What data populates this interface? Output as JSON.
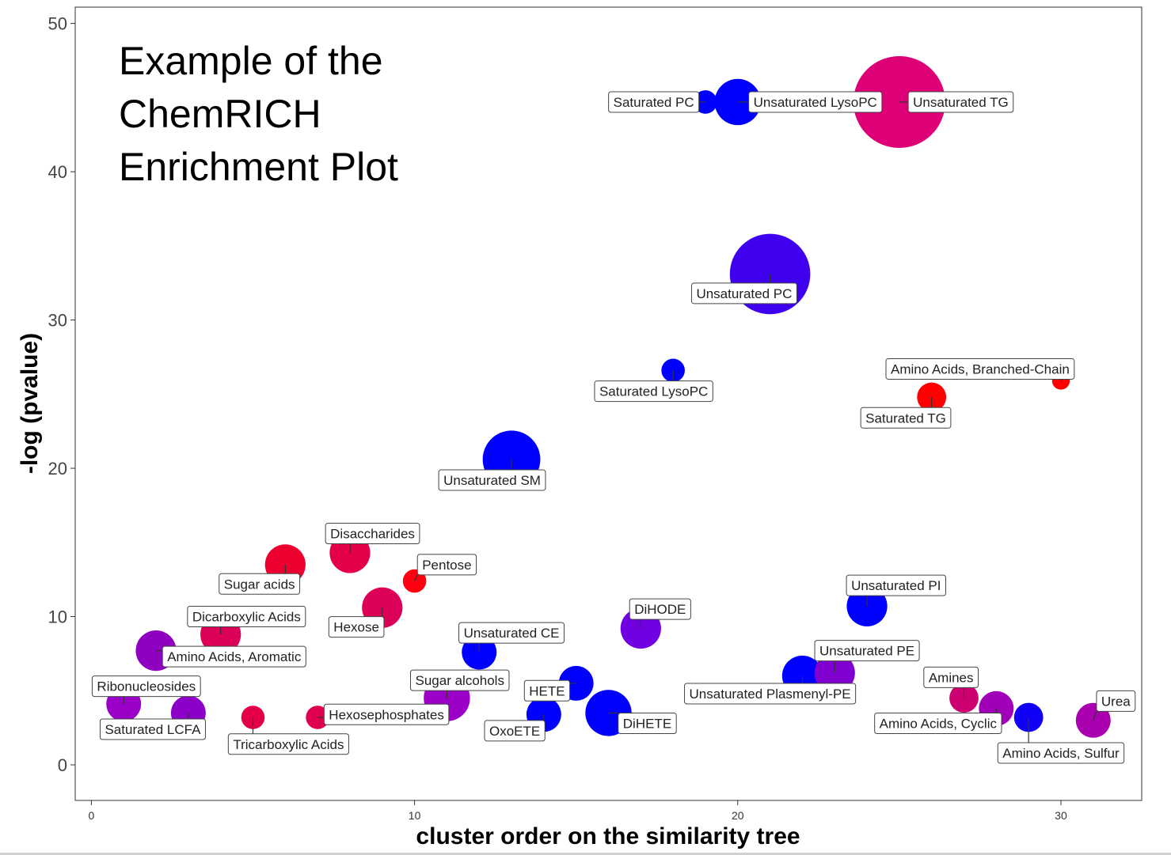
{
  "chart_data": {
    "type": "scatter",
    "title_lines": [
      "Example of the",
      "ChemRICH",
      "Enrichment Plot"
    ],
    "xlabel": "cluster order on the similarity tree",
    "ylabel": "-log (pvalue)",
    "xlim": [
      -0.5,
      32.5
    ],
    "ylim": [
      -2.4,
      51.1
    ],
    "x_ticks": [
      0,
      10,
      20,
      30
    ],
    "y_ticks": [
      0,
      10,
      20,
      30,
      40,
      50
    ],
    "grid": false,
    "color_scale": {
      "red": "#ff0000",
      "magenta": "#dd0077",
      "purple": "#9900cc",
      "blue": "#0000ff"
    },
    "points": [
      {
        "label": "Ribonucleosides",
        "x": 1,
        "y": 4.1,
        "size": 5,
        "color": "#9a00c8",
        "lx": 1.7,
        "ly": 5.3,
        "side": "center"
      },
      {
        "label": "Amino Acids, Aromatic",
        "x": 2,
        "y": 7.7,
        "size": 6,
        "color": "#9000c0",
        "lx": 2.2,
        "ly": 7.3,
        "side": "left"
      },
      {
        "label": "Saturated LCFA",
        "x": 3,
        "y": 3.5,
        "size": 5,
        "color": "#8c00c8",
        "lx": 1.9,
        "ly": 2.4,
        "side": "center"
      },
      {
        "label": "Dicarboxylic Acids",
        "x": 4,
        "y": 8.8,
        "size": 6,
        "color": "#dc0058",
        "lx": 4.8,
        "ly": 10.0,
        "side": "center"
      },
      {
        "label": "Tricarboxylic Acids",
        "x": 5,
        "y": 3.2,
        "size": 3,
        "color": "#e40048",
        "lx": 6.1,
        "ly": 1.4,
        "side": "center"
      },
      {
        "label": "Sugar acids",
        "x": 6,
        "y": 13.5,
        "size": 6,
        "color": "#ec0030",
        "lx": 5.2,
        "ly": 12.2,
        "side": "center"
      },
      {
        "label": "Hexosephosphates",
        "x": 7,
        "y": 3.2,
        "size": 3,
        "color": "#e00050",
        "lx": 7.2,
        "ly": 3.4,
        "side": "left"
      },
      {
        "label": "Disaccharides",
        "x": 8,
        "y": 14.3,
        "size": 6,
        "color": "#e40048",
        "lx": 8.7,
        "ly": 15.6,
        "side": "center"
      },
      {
        "label": "Hexose",
        "x": 9,
        "y": 10.6,
        "size": 6,
        "color": "#dc0058",
        "lx": 8.2,
        "ly": 9.3,
        "side": "center"
      },
      {
        "label": "Pentose",
        "x": 10,
        "y": 12.4,
        "size": 3,
        "color": "#ff0010",
        "lx": 11.0,
        "ly": 13.5,
        "side": "center"
      },
      {
        "label": "Sugar alcohols",
        "x": 11,
        "y": 4.5,
        "size": 7,
        "color": "#9c00c8",
        "lx": 11.4,
        "ly": 5.7,
        "side": "center"
      },
      {
        "label": "Unsaturated CE",
        "x": 12,
        "y": 7.6,
        "size": 5,
        "color": "#0000ff",
        "lx": 13.0,
        "ly": 8.9,
        "side": "center"
      },
      {
        "label": "Unsaturated SM",
        "x": 13,
        "y": 20.6,
        "size": 9,
        "color": "#0000ff",
        "lx": 12.4,
        "ly": 19.2,
        "side": "center"
      },
      {
        "label": "HETE",
        "x": 15,
        "y": 5.5,
        "size": 5,
        "color": "#0000ff",
        "lx": 14.1,
        "ly": 5.0,
        "side": "center"
      },
      {
        "label": "OxoETE",
        "x": 14,
        "y": 3.4,
        "size": 5,
        "color": "#0000ff",
        "lx": 13.1,
        "ly": 2.3,
        "side": "center"
      },
      {
        "label": "DiHETE",
        "x": 16,
        "y": 3.5,
        "size": 7,
        "color": "#0000ff",
        "lx": 17.2,
        "ly": 2.8,
        "side": "center"
      },
      {
        "label": "DiHODE",
        "x": 17,
        "y": 9.2,
        "size": 6,
        "color": "#7000e0",
        "lx": 17.6,
        "ly": 10.5,
        "side": "center"
      },
      {
        "label": "Saturated LysoPC",
        "x": 18,
        "y": 26.6,
        "size": 3,
        "color": "#0000ff",
        "lx": 17.4,
        "ly": 25.2,
        "side": "center"
      },
      {
        "label": "Saturated PC",
        "x": 19,
        "y": 44.7,
        "size": 3,
        "color": "#0000ff",
        "lx": 17.4,
        "ly": 44.7,
        "side": "center"
      },
      {
        "label": "Unsaturated LysoPC",
        "x": 20,
        "y": 44.7,
        "size": 7,
        "color": "#0000ff",
        "lx": 22.4,
        "ly": 44.7,
        "side": "center"
      },
      {
        "label": "Unsaturated PC",
        "x": 21,
        "y": 33.1,
        "size": 13,
        "color": "#4000f0",
        "lx": 20.2,
        "ly": 31.8,
        "side": "center"
      },
      {
        "label": "Unsaturated Plasmenyl-PE",
        "x": 22,
        "y": 6.0,
        "size": 6,
        "color": "#0000ff",
        "lx": 21.0,
        "ly": 4.8,
        "side": "center"
      },
      {
        "label": "Unsaturated PE",
        "x": 23,
        "y": 6.2,
        "size": 6,
        "color": "#8000d0",
        "lx": 24.0,
        "ly": 7.7,
        "side": "center"
      },
      {
        "label": "Unsaturated PI",
        "x": 24,
        "y": 10.7,
        "size": 6,
        "color": "#0000ff",
        "lx": 24.9,
        "ly": 12.1,
        "side": "center"
      },
      {
        "label": "Unsaturated TG",
        "x": 25,
        "y": 44.7,
        "size": 15,
        "color": "#dd0077",
        "lx": 26.9,
        "ly": 44.7,
        "side": "center"
      },
      {
        "label": "Saturated TG",
        "x": 26,
        "y": 24.8,
        "size": 4,
        "color": "#ff0000",
        "lx": 25.2,
        "ly": 23.4,
        "side": "center"
      },
      {
        "label": "Amino Acids, Branched-Chain",
        "x": 30,
        "y": 25.9,
        "size": 2,
        "color": "#ff0000",
        "lx": 27.5,
        "ly": 26.7,
        "side": "center"
      },
      {
        "label": "Amines",
        "x": 27,
        "y": 4.5,
        "size": 4,
        "color": "#cc0070",
        "lx": 26.6,
        "ly": 5.9,
        "side": "center"
      },
      {
        "label": "Amino Acids, Cyclic",
        "x": 28,
        "y": 3.8,
        "size": 5,
        "color": "#a000b8",
        "lx": 26.2,
        "ly": 2.8,
        "side": "center"
      },
      {
        "label": "Amino Acids, Sulfur",
        "x": 29,
        "y": 3.2,
        "size": 4,
        "color": "#1000f8",
        "lx": 30.0,
        "ly": 0.8,
        "side": "center"
      },
      {
        "label": "Urea",
        "x": 31,
        "y": 3.0,
        "size": 5,
        "color": "#aa00b0",
        "lx": 31.7,
        "ly": 4.3,
        "side": "center"
      }
    ]
  }
}
